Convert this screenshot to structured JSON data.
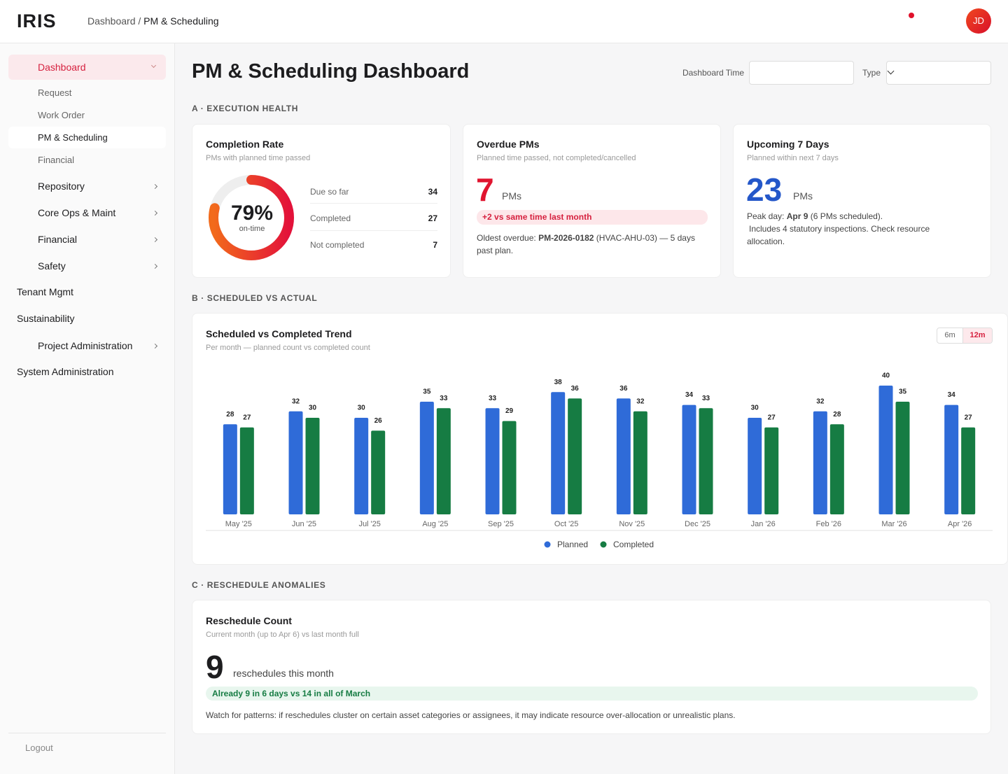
{
  "header": {
    "logo": "IRIS",
    "breadcrumb_root": "Dashboard",
    "breadcrumb_sep": "/",
    "breadcrumb_current": "PM & Scheduling",
    "avatar": "JD"
  },
  "sidebar": {
    "items": [
      "Dashboard",
      "Request",
      "Work Order",
      "PM & Scheduling",
      "Financial",
      "Repository",
      "Core Ops & Maint",
      "Financial",
      "Safety",
      "Tenant Mgmt",
      "Sustainability",
      "Project Administration",
      "System Administration"
    ],
    "logout": "Logout"
  },
  "page": {
    "title": "PM & Scheduling Dashboard",
    "filters": [
      "Dashboard Time",
      "Type"
    ]
  },
  "section_a": {
    "heading": "A · EXECUTION HEALTH",
    "completion": {
      "title": "Completion Rate",
      "subtitle": "PMs with planned time passed",
      "rate": {
        "value": 79,
        "label": "79%"
      },
      "rate_caption": "on-time",
      "rows": [
        [
          "Due so far",
          "34"
        ],
        [
          "Completed",
          "27"
        ],
        [
          "Not completed",
          "7"
        ]
      ]
    },
    "overdue": {
      "title": "Overdue PMs",
      "subtitle": "Planned time passed, not completed/cancelled",
      "count": "7",
      "unit": "PMs",
      "badge": "+2 vs same time last month",
      "note_prefix": "Oldest overdue:",
      "note_id": "PM-2026-0182",
      "note_suffix": "(HVAC-AHU-03) — 5 days past plan."
    },
    "upcoming": {
      "title": "Upcoming 7 Days",
      "subtitle": "Planned within next 7 days",
      "count": "23",
      "unit": "PMs",
      "peak_prefix": "Peak day:",
      "peak_day": "Apr 9",
      "peak_suffix": "(6 PMs scheduled).",
      "note": "Includes 4 statutory inspections. Check resource allocation."
    }
  },
  "section_b": {
    "heading": "B · SCHEDULED VS ACTUAL"
  },
  "chart_data": {
    "type": "bar",
    "title": "Scheduled vs Completed Trend",
    "subtitle": "Per month — planned count vs completed count",
    "categories": [
      "May '25",
      "Jun '25",
      "Jul '25",
      "Aug '25",
      "Sep '25",
      "Oct '25",
      "Nov '25",
      "Dec '25",
      "Jan '26",
      "Feb '26",
      "Mar '26",
      "Apr '26"
    ],
    "series": [
      {
        "name": "Planned",
        "color": "#2f6bd8",
        "values": [
          28,
          32,
          30,
          35,
          33,
          38,
          36,
          34,
          30,
          32,
          40,
          34
        ]
      },
      {
        "name": "Completed",
        "color": "#167c43",
        "values": [
          27,
          30,
          26,
          33,
          29,
          36,
          32,
          33,
          27,
          28,
          35,
          27
        ]
      }
    ],
    "range_options": [
      "6m",
      "12m"
    ],
    "legend": "bottom"
  },
  "section_c": {
    "heading": "C · RESCHEDULE ANOMALIES",
    "title": "Reschedule Count",
    "subtitle": "Current month (up to Apr 6) vs last month full",
    "count": "9",
    "unit": "reschedules this month",
    "badge": "Already 9 in 6 days vs 14 in all of March",
    "note": "Watch for patterns: if reschedules cluster on certain asset categories or assignees, it may indicate resource over-allocation or unrealistic plans."
  }
}
